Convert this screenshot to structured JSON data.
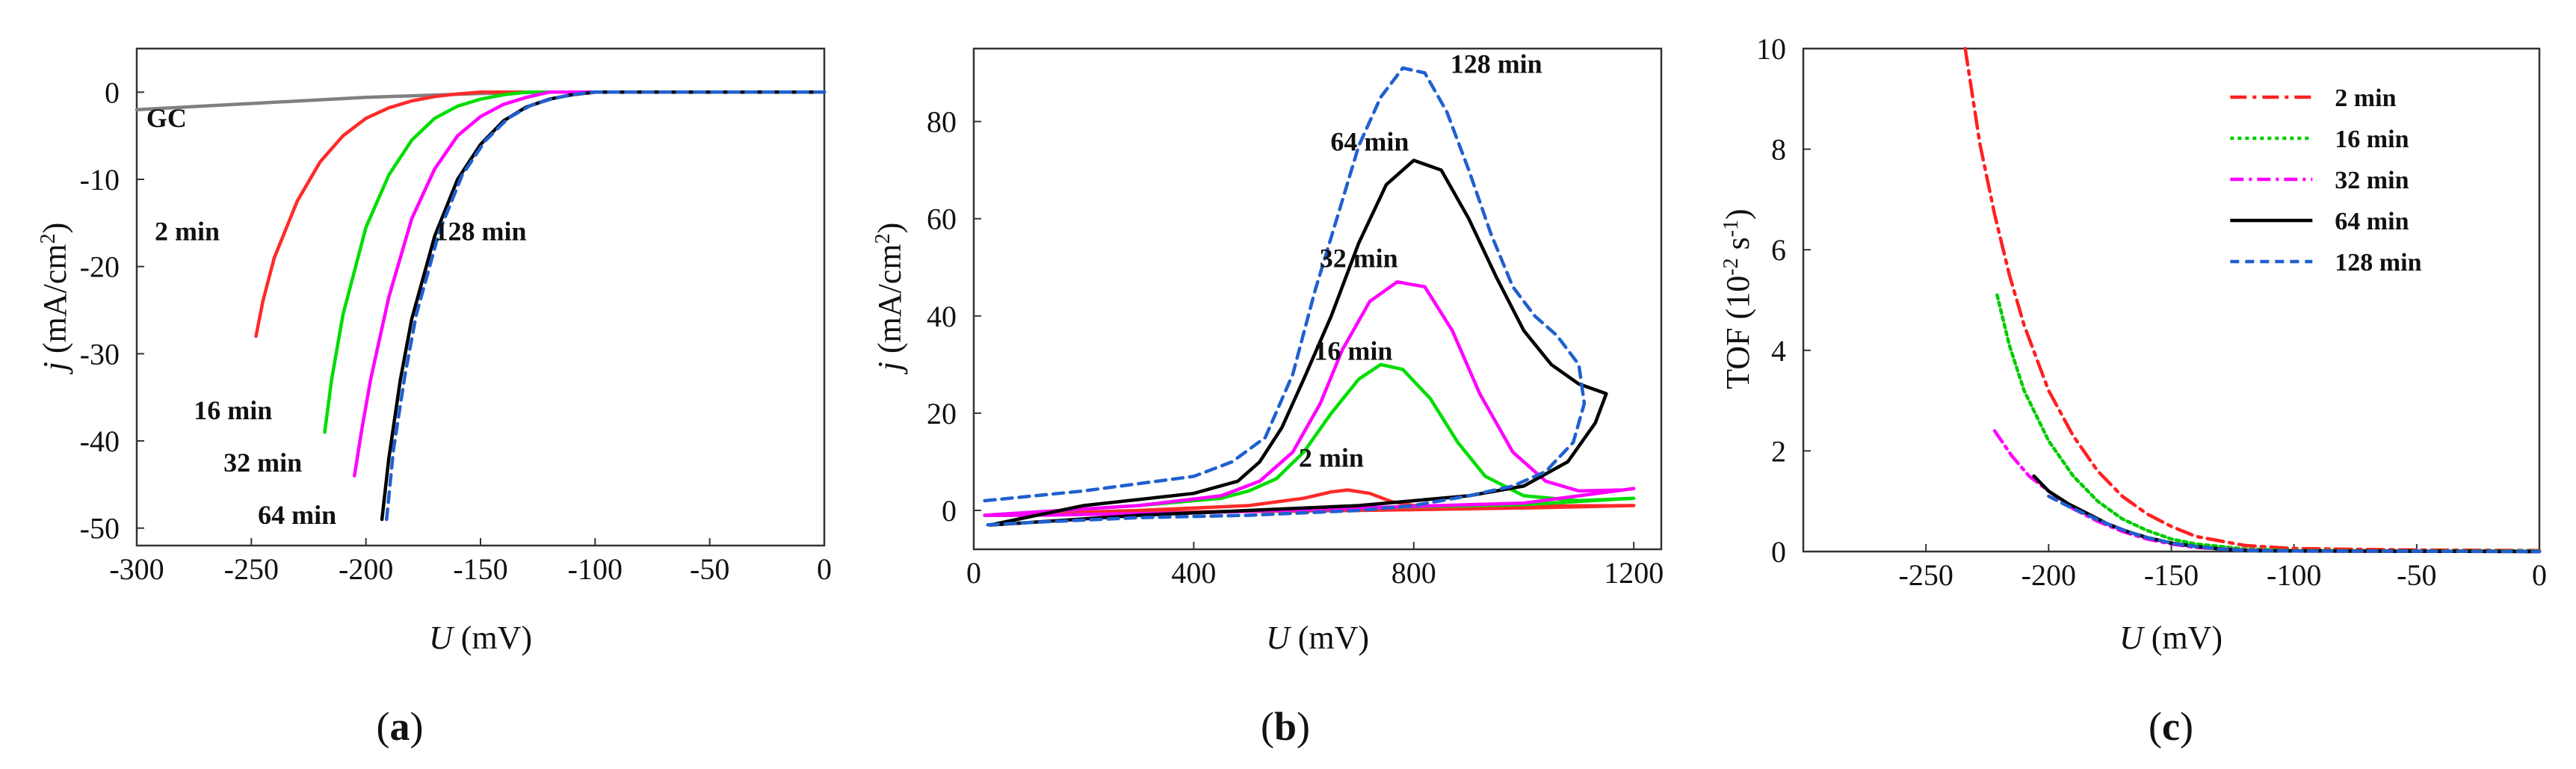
{
  "chart_data": [
    {
      "type": "line",
      "panel_label": "(a)",
      "xlabel_italic": "U",
      "xlabel_rest": " (mV)",
      "ylabel_italic": "j",
      "ylabel_rest": " (mA/cm",
      "ylabel_sup": "2",
      "ylabel_close": ")",
      "xlim": [
        -300,
        0
      ],
      "ylim": [
        -52,
        5
      ],
      "xticks": [
        -300,
        -250,
        -200,
        -150,
        -100,
        -50,
        0
      ],
      "yticks": [
        0,
        -10,
        -20,
        -30,
        -40,
        -50
      ],
      "series": [
        {
          "name": "GC",
          "color": "#808080",
          "dash": "",
          "label_pos": [
            -287,
            -4
          ],
          "x": [
            -300,
            -250,
            -200,
            -150,
            -120,
            -100,
            0
          ],
          "y": [
            -2,
            -1.3,
            -0.6,
            -0.15,
            0,
            0,
            0
          ]
        },
        {
          "name": "2 min",
          "color": "#ff2a2a",
          "dash": "",
          "label_pos": [
            -278,
            -17
          ],
          "x": [
            -248,
            -245,
            -240,
            -230,
            -220,
            -210,
            -200,
            -190,
            -180,
            -170,
            -160,
            -150,
            -100,
            0
          ],
          "y": [
            -28,
            -24,
            -19,
            -12.5,
            -8,
            -5,
            -3,
            -1.8,
            -1,
            -0.5,
            -0.2,
            0,
            0,
            0
          ]
        },
        {
          "name": "16 min",
          "color": "#00dd00",
          "dash": "",
          "label_pos": [
            -258,
            -37.5
          ],
          "x": [
            -218,
            -215,
            -210,
            -200,
            -190,
            -180,
            -170,
            -160,
            -150,
            -140,
            -130,
            -100,
            0
          ],
          "y": [
            -39,
            -33,
            -25.5,
            -15.5,
            -9.5,
            -5.5,
            -3,
            -1.6,
            -0.8,
            -0.3,
            0,
            0,
            0
          ]
        },
        {
          "name": "32 min",
          "color": "#ff00ff",
          "dash": "",
          "label_pos": [
            -245,
            -43.5
          ],
          "x": [
            -205,
            -202,
            -198,
            -190,
            -180,
            -170,
            -160,
            -150,
            -140,
            -130,
            -120,
            -100,
            0
          ],
          "y": [
            -44,
            -39,
            -33,
            -23.5,
            -14.5,
            -8.8,
            -5,
            -2.8,
            -1.4,
            -0.6,
            0,
            0,
            0
          ]
        },
        {
          "name": "64 min",
          "color": "#000000",
          "dash": "",
          "label_pos": [
            -230,
            -49.5
          ],
          "x": [
            -193,
            -190,
            -185,
            -180,
            -170,
            -160,
            -150,
            -140,
            -130,
            -120,
            -110,
            -100,
            0
          ],
          "y": [
            -49,
            -42,
            -33,
            -26,
            -16.5,
            -10,
            -6,
            -3.3,
            -1.7,
            -0.8,
            -0.3,
            0,
            0
          ]
        },
        {
          "name": "128 min",
          "color": "#2060d0",
          "dash": "14,9",
          "label_pos": [
            -150,
            -17
          ],
          "x": [
            -191,
            -188,
            -183,
            -178,
            -168,
            -158,
            -148,
            -138,
            -128,
            -118,
            -108,
            -100,
            0
          ],
          "y": [
            -49,
            -41,
            -32.5,
            -25.5,
            -16,
            -9.5,
            -5.6,
            -3,
            -1.5,
            -0.7,
            -0.2,
            0,
            0
          ]
        }
      ]
    },
    {
      "type": "line",
      "panel_label": "(b)",
      "xlabel_italic": "U",
      "xlabel_rest": " (mV)",
      "ylabel_italic": "j",
      "ylabel_rest": " (mA/cm",
      "ylabel_sup": "2",
      "ylabel_close": ")",
      "xlim": [
        0,
        1250
      ],
      "ylim": [
        -8,
        95
      ],
      "xticks": [
        0,
        400,
        800,
        1200
      ],
      "yticks": [
        0,
        20,
        40,
        60,
        80
      ],
      "series": [
        {
          "name": "2 min",
          "color": "#ff2a2a",
          "dash": "",
          "label_pos": [
            650,
            9
          ],
          "x": [
            20,
            300,
            500,
            600,
            650,
            680,
            720,
            760,
            800,
            900,
            1000,
            1200,
            1000,
            700,
            400,
            100,
            20
          ],
          "y": [
            -1,
            0,
            1,
            2.5,
            3.8,
            4.2,
            3.5,
            1.8,
            1,
            0.8,
            0.9,
            1,
            0.5,
            0,
            -0.3,
            -0.8,
            -1
          ]
        },
        {
          "name": "16 min",
          "color": "#00dd00",
          "dash": "",
          "label_pos": [
            690,
            31
          ],
          "x": [
            20,
            300,
            450,
            500,
            550,
            600,
            650,
            700,
            740,
            780,
            830,
            880,
            930,
            1000,
            1100,
            1200,
            1000,
            700,
            400,
            100,
            20
          ],
          "y": [
            -1,
            1,
            2.5,
            4,
            6.5,
            12,
            20,
            27,
            30,
            29,
            23,
            14,
            7,
            3,
            2,
            2.5,
            1.2,
            0.5,
            -0.5,
            -1,
            -1
          ]
        },
        {
          "name": "32 min",
          "color": "#ff00ff",
          "dash": "",
          "label_pos": [
            700,
            50
          ],
          "x": [
            20,
            300,
            450,
            520,
            580,
            630,
            670,
            720,
            770,
            820,
            870,
            920,
            980,
            1040,
            1100,
            1180,
            1200,
            1000,
            700,
            400,
            100,
            20
          ],
          "y": [
            -1,
            1,
            3,
            6,
            12,
            22,
            33,
            43,
            47,
            46,
            37,
            24,
            12,
            6,
            4,
            4.2,
            4.5,
            1.5,
            0.5,
            -0.5,
            -1,
            -1
          ]
        },
        {
          "name": "64 min",
          "color": "#000000",
          "dash": "",
          "label_pos": [
            720,
            74
          ],
          "x": [
            30,
            200,
            400,
            480,
            520,
            560,
            600,
            650,
            700,
            750,
            800,
            850,
            900,
            950,
            1000,
            1050,
            1100,
            1150,
            1130,
            1080,
            1000,
            900,
            800,
            700,
            500,
            300,
            100,
            30
          ],
          "y": [
            -3,
            1,
            3.5,
            6,
            10,
            17,
            27,
            40,
            55,
            67,
            72,
            70,
            60,
            48,
            37,
            30,
            26,
            24,
            18,
            10,
            5,
            3,
            2,
            1,
            0,
            -1,
            -2.5,
            -3
          ]
        },
        {
          "name": "128 min",
          "color": "#2060d0",
          "dash": "14,9",
          "label_pos": [
            950,
            90
          ],
          "x": [
            20,
            200,
            400,
            470,
            530,
            580,
            620,
            660,
            700,
            740,
            780,
            820,
            860,
            900,
            940,
            980,
            1020,
            1060,
            1100,
            1110,
            1090,
            1040,
            980,
            900,
            800,
            700,
            500,
            300,
            100,
            20
          ],
          "y": [
            2,
            4,
            7,
            10,
            15,
            28,
            45,
            60,
            75,
            85,
            91,
            90,
            82,
            70,
            57,
            46,
            40,
            36,
            30,
            22,
            14,
            8,
            5,
            3,
            1,
            0,
            -1,
            -1.5,
            -2.5,
            -3
          ]
        }
      ]
    },
    {
      "type": "line",
      "panel_label": "(c)",
      "xlabel_italic": "U",
      "xlabel_rest": " (mV)",
      "ylabel_text": "TOF (10",
      "ylabel_sup": "-2",
      "ylabel_close": " s",
      "ylabel_sup2": "-1",
      "ylabel_end": ")",
      "xlim": [
        -300,
        0
      ],
      "ylim": [
        0,
        10
      ],
      "xticks": [
        -250,
        -200,
        -150,
        -100,
        -50,
        0
      ],
      "yticks": [
        0,
        2,
        4,
        6,
        8,
        10
      ],
      "legend_position": "top-right",
      "series": [
        {
          "name": "2 min",
          "color": "#ff2020",
          "dash": "22,8,5,8",
          "x": [
            -234,
            -228,
            -222,
            -216,
            -210,
            -200,
            -190,
            -180,
            -170,
            -160,
            -150,
            -140,
            -120,
            -100,
            -50,
            0
          ],
          "y": [
            10,
            8.1,
            6.7,
            5.5,
            4.5,
            3.2,
            2.3,
            1.6,
            1.1,
            0.75,
            0.5,
            0.3,
            0.12,
            0.06,
            0.03,
            0.02
          ]
        },
        {
          "name": "16 min",
          "color": "#00cc00",
          "dash": "5,5",
          "x": [
            -221,
            -216,
            -210,
            -200,
            -190,
            -180,
            -170,
            -160,
            -150,
            -140,
            -120,
            -100,
            -50,
            0
          ],
          "y": [
            5.1,
            4.1,
            3.2,
            2.2,
            1.5,
            1,
            0.65,
            0.42,
            0.25,
            0.15,
            0.05,
            0.02,
            0.01,
            0.01
          ]
        },
        {
          "name": "32 min",
          "color": "#ff00ff",
          "dash": "18,7,4,7",
          "x": [
            -222,
            -215,
            -208,
            -200,
            -190,
            -180,
            -170,
            -160,
            -150,
            -140,
            -120,
            -100,
            0
          ],
          "y": [
            2.4,
            1.9,
            1.5,
            1.2,
            0.85,
            0.6,
            0.4,
            0.25,
            0.15,
            0.08,
            0.03,
            0.01,
            0
          ]
        },
        {
          "name": "64 min",
          "color": "#000000",
          "dash": "",
          "x": [
            -206,
            -200,
            -192,
            -184,
            -176,
            -168,
            -160,
            -150,
            -140,
            -130,
            -120,
            -100,
            0
          ],
          "y": [
            1.5,
            1.2,
            0.95,
            0.75,
            0.55,
            0.4,
            0.28,
            0.17,
            0.1,
            0.05,
            0.02,
            0.01,
            0
          ]
        },
        {
          "name": "128 min",
          "color": "#2060d0",
          "dash": "12,8",
          "x": [
            -200,
            -192,
            -184,
            -176,
            -168,
            -160,
            -150,
            -140,
            -130,
            -120,
            -100,
            0
          ],
          "y": [
            1.1,
            0.9,
            0.72,
            0.55,
            0.4,
            0.28,
            0.17,
            0.1,
            0.05,
            0.02,
            0.01,
            0
          ]
        }
      ]
    }
  ]
}
